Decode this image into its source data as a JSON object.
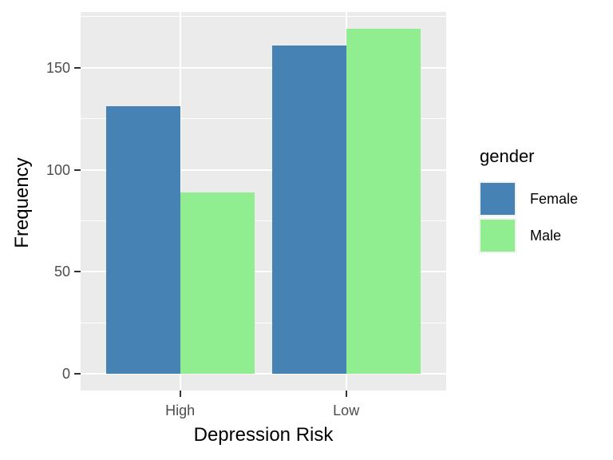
{
  "chart_data": {
    "type": "bar",
    "title": "",
    "xlabel": "Depression Risk",
    "ylabel": "Frequency",
    "categories": [
      "High",
      "Low"
    ],
    "series": [
      {
        "name": "Female",
        "color": "#4682B4",
        "values": [
          131,
          161
        ]
      },
      {
        "name": "Male",
        "color": "#90EE90",
        "values": [
          89,
          169
        ]
      }
    ],
    "y_ticks": [
      0,
      50,
      100,
      150
    ],
    "y_minor_ticks": [
      25,
      75,
      125,
      175
    ],
    "ylim": [
      0,
      177
    ],
    "grid": true,
    "legend_position": "right",
    "legend_title": "gender",
    "colors": {
      "panel_bg": "#EBEBEB",
      "grid": "#FFFFFF",
      "tick_label": "#4D4D4D",
      "axis_title": "#000000",
      "tick_mark": "#333333",
      "legend_key_bg": "#F2F2F2"
    }
  }
}
